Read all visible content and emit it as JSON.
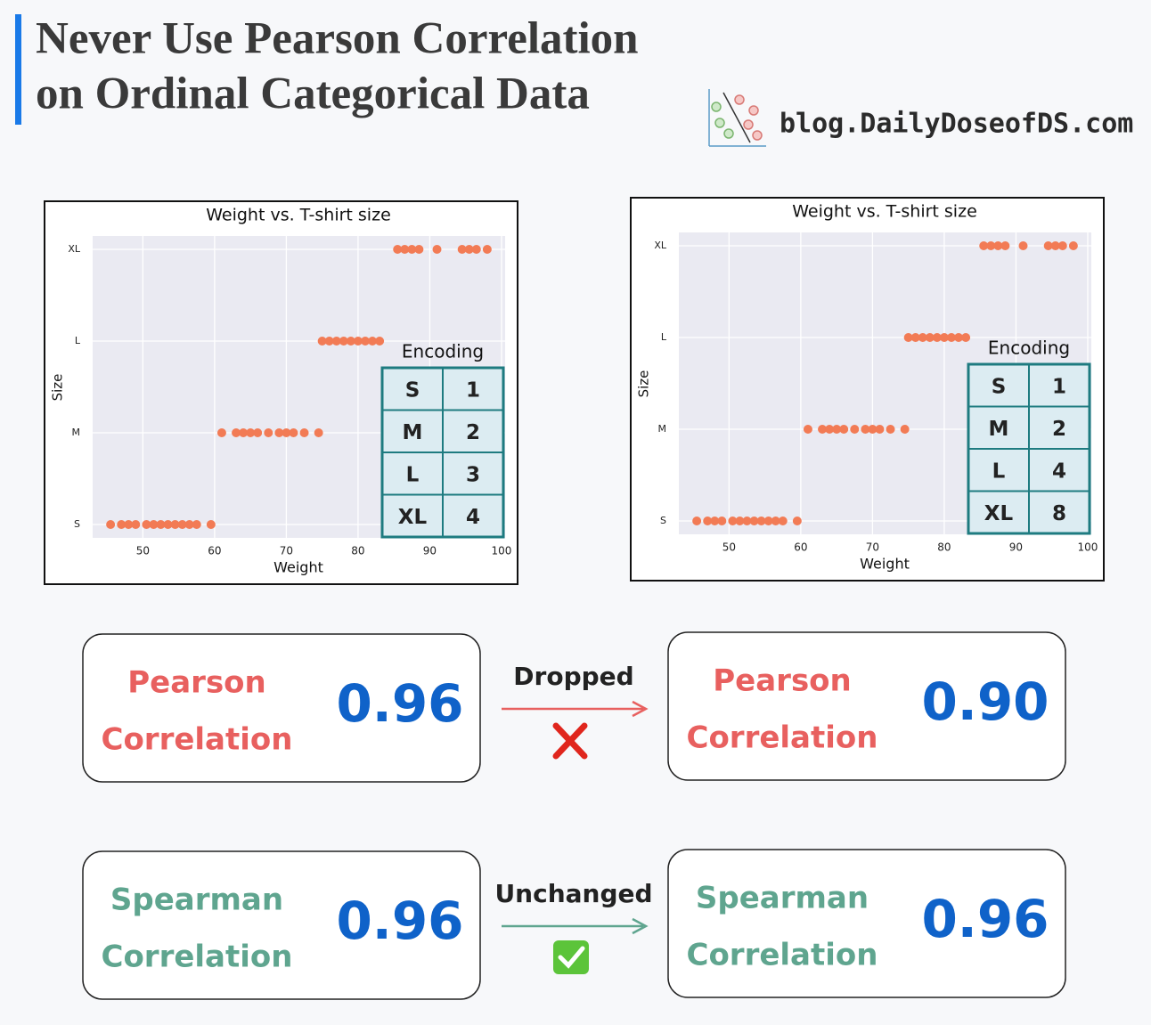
{
  "header": {
    "title_line1": "Never Use Pearson Correlation",
    "title_line2": "on Ordinal Categorical Data",
    "site": "blog.DailyDoseofDS.com"
  },
  "chart_data": [
    {
      "type": "scatter",
      "title": "Weight vs. T-shirt size",
      "x_label": "Weight",
      "y_label": "Size",
      "xlim": [
        43,
        100.5
      ],
      "xticks": [
        50,
        60,
        70,
        80,
        90,
        100
      ],
      "ycategories": [
        "S",
        "M",
        "L",
        "XL"
      ],
      "grid": true,
      "series": [
        {
          "color": "#f27b55",
          "x": [
            45.5,
            47,
            48,
            49,
            50.5,
            51.5,
            52.5,
            53.5,
            54.5,
            55.5,
            56.5,
            57.5,
            59.5,
            61,
            63,
            64,
            65,
            66,
            67.5,
            69,
            70,
            71,
            72.5,
            74.5,
            75,
            76,
            77,
            78,
            79,
            80,
            81,
            82,
            83,
            85.5,
            86.5,
            87.5,
            88.5,
            91,
            94.5,
            95.5,
            96.5,
            98
          ],
          "values": [
            "S",
            "S",
            "S",
            "S",
            "S",
            "S",
            "S",
            "S",
            "S",
            "S",
            "S",
            "S",
            "S",
            "M",
            "M",
            "M",
            "M",
            "M",
            "M",
            "M",
            "M",
            "M",
            "M",
            "M",
            "L",
            "L",
            "L",
            "L",
            "L",
            "L",
            "L",
            "L",
            "L",
            "XL",
            "XL",
            "XL",
            "XL",
            "XL",
            "XL",
            "XL",
            "XL",
            "XL"
          ]
        }
      ],
      "encoding": {
        "title": "Encoding",
        "rows": [
          [
            "S",
            1
          ],
          [
            "M",
            2
          ],
          [
            "L",
            3
          ],
          [
            "XL",
            4
          ]
        ]
      }
    },
    {
      "type": "scatter",
      "title": "Weight vs. T-shirt size",
      "x_label": "Weight",
      "y_label": "Size",
      "xlim": [
        43,
        100.5
      ],
      "xticks": [
        50,
        60,
        70,
        80,
        90,
        100
      ],
      "ycategories": [
        "S",
        "M",
        "L",
        "XL"
      ],
      "grid": true,
      "series": [
        {
          "color": "#f27b55",
          "x": [
            45.5,
            47,
            48,
            49,
            50.5,
            51.5,
            52.5,
            53.5,
            54.5,
            55.5,
            56.5,
            57.5,
            59.5,
            61,
            63,
            64,
            65,
            66,
            67.5,
            69,
            70,
            71,
            72.5,
            74.5,
            75,
            76,
            77,
            78,
            79,
            80,
            81,
            82,
            83,
            85.5,
            86.5,
            87.5,
            88.5,
            91,
            94.5,
            95.5,
            96.5,
            98
          ],
          "values": [
            "S",
            "S",
            "S",
            "S",
            "S",
            "S",
            "S",
            "S",
            "S",
            "S",
            "S",
            "S",
            "S",
            "M",
            "M",
            "M",
            "M",
            "M",
            "M",
            "M",
            "M",
            "M",
            "M",
            "M",
            "L",
            "L",
            "L",
            "L",
            "L",
            "L",
            "L",
            "L",
            "L",
            "XL",
            "XL",
            "XL",
            "XL",
            "XL",
            "XL",
            "XL",
            "XL",
            "XL"
          ]
        }
      ],
      "encoding": {
        "title": "Encoding",
        "rows": [
          [
            "S",
            1
          ],
          [
            "M",
            2
          ],
          [
            "L",
            4
          ],
          [
            "XL",
            8
          ]
        ]
      }
    }
  ],
  "comparisons": [
    {
      "left": {
        "line1": "Pearson",
        "line2": "Correlation",
        "value": "0.96"
      },
      "change": "Dropped",
      "right": {
        "line1": "Pearson",
        "line2": "Correlation",
        "value": "0.90"
      }
    },
    {
      "left": {
        "line1": "Spearman",
        "line2": "Correlation",
        "value": "0.96"
      },
      "change": "Unchanged",
      "right": {
        "line1": "Spearman",
        "line2": "Correlation",
        "value": "0.96"
      }
    }
  ]
}
